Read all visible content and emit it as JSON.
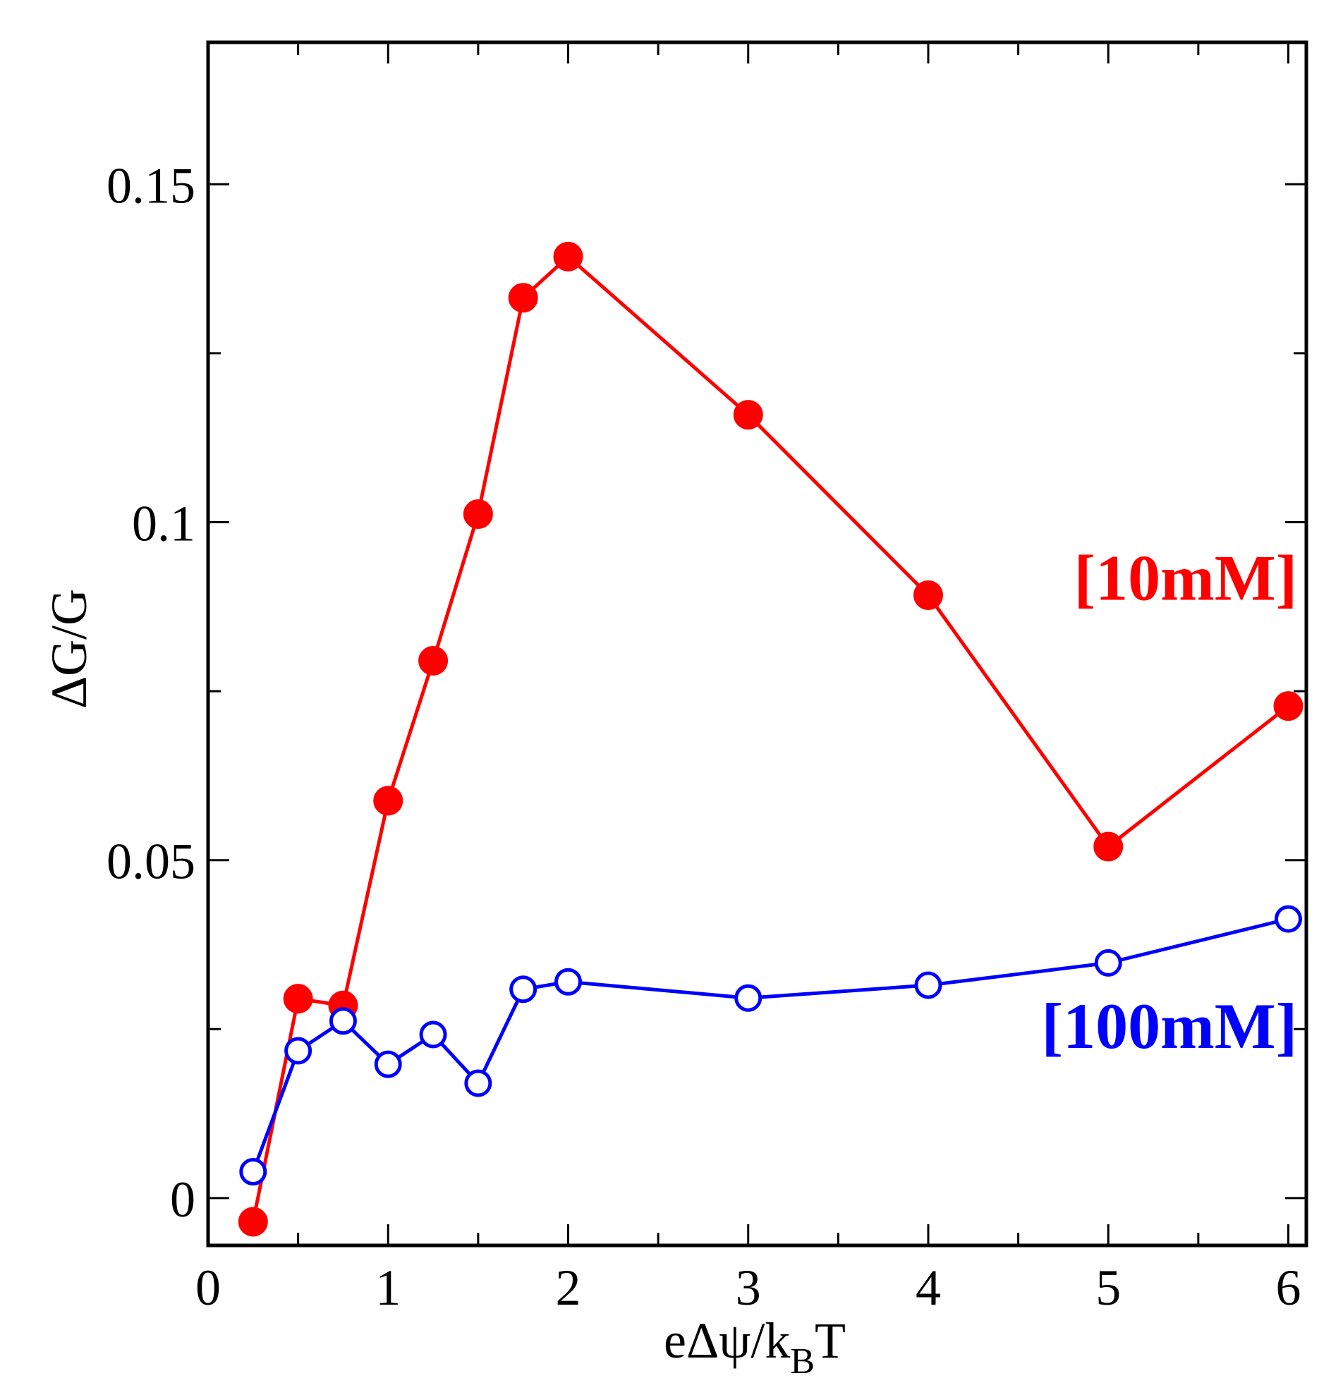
{
  "chart_data": {
    "type": "line",
    "title": "",
    "xlabel": {
      "prefix": "eΔψ/k",
      "subscript": "B",
      "suffix": "T"
    },
    "ylabel": "ΔG/G",
    "xlim": [
      0,
      6.1
    ],
    "ylim": [
      -0.007,
      0.171
    ],
    "xticks": [
      {
        "value": 0,
        "label": "0"
      },
      {
        "value": 1,
        "label": "1"
      },
      {
        "value": 2,
        "label": "2"
      },
      {
        "value": 3,
        "label": "3"
      },
      {
        "value": 4,
        "label": "4"
      },
      {
        "value": 5,
        "label": "5"
      },
      {
        "value": 6,
        "label": "6"
      }
    ],
    "xminor": [
      0.5,
      1.5,
      2.5,
      3.5,
      4.5,
      5.5
    ],
    "yticks": [
      {
        "value": 0,
        "label": "0"
      },
      {
        "value": 0.05,
        "label": "0.05"
      },
      {
        "value": 0.1,
        "label": "0.1"
      },
      {
        "value": 0.15,
        "label": "0.15"
      }
    ],
    "yminor": [
      0.025,
      0.075,
      0.125
    ],
    "grid": false,
    "series": [
      {
        "name": "[10mM]",
        "color": "#ff0000",
        "marker": "filled-circle",
        "x": [
          0.25,
          0.5,
          0.75,
          1.0,
          1.25,
          1.5,
          1.75,
          2.0,
          3.0,
          4.0,
          5.0,
          6.0
        ],
        "y": [
          -0.0035,
          0.0295,
          0.0285,
          0.0588,
          0.0795,
          0.1012,
          0.1332,
          0.1393,
          0.1159,
          0.0892,
          0.052,
          0.0728
        ]
      },
      {
        "name": "[100mM]",
        "color": "#0000ff",
        "marker": "open-circle",
        "x": [
          0.25,
          0.5,
          0.75,
          1.0,
          1.25,
          1.5,
          1.75,
          2.0,
          3.0,
          4.0,
          5.0,
          6.0
        ],
        "y": [
          0.0039,
          0.0218,
          0.0262,
          0.0198,
          0.0242,
          0.017,
          0.0309,
          0.032,
          0.0296,
          0.0315,
          0.0348,
          0.0413
        ]
      }
    ],
    "annotations": [
      {
        "series": 0,
        "text": "[10mM]",
        "color": "#ff0000",
        "at_x": 6.05,
        "at_y": 0.0885,
        "anchor": "end"
      },
      {
        "series": 1,
        "text": "[100mM]",
        "color": "#0000ff",
        "at_x": 6.05,
        "at_y": 0.0222,
        "anchor": "end"
      }
    ]
  }
}
